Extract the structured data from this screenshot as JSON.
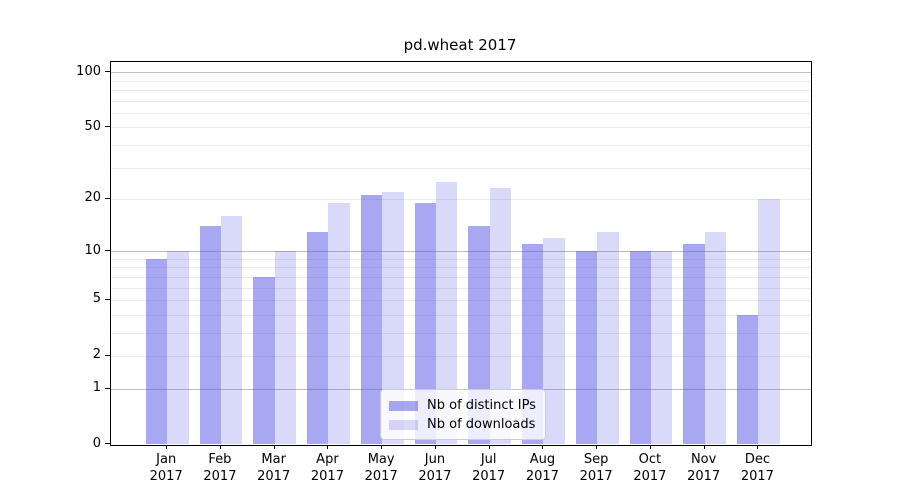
{
  "chart_data": {
    "type": "bar",
    "title": "pd.wheat 2017",
    "categories": [
      "Jan 2017",
      "Feb 2017",
      "Mar 2017",
      "Apr 2017",
      "May 2017",
      "Jun 2017",
      "Jul 2017",
      "Aug 2017",
      "Sep 2017",
      "Oct 2017",
      "Nov 2017",
      "Dec 2017"
    ],
    "series": [
      {
        "name": "Nb of distinct IPs",
        "color": "rgba(80,80,230,0.5)",
        "values": [
          9,
          14,
          7,
          13,
          21,
          19,
          14,
          11,
          10,
          10,
          11,
          4
        ]
      },
      {
        "name": "Nb of downloads",
        "color": "rgba(80,80,230,0.22)",
        "values": [
          10,
          16,
          10,
          19,
          22,
          25,
          23,
          12,
          13,
          10,
          13,
          20
        ]
      }
    ],
    "yscale": "log1p",
    "xlabel": "",
    "ylabel": "",
    "y_axis": {
      "tick_values": [
        100,
        50,
        20,
        10,
        5,
        2,
        1,
        0
      ],
      "tick_labels": [
        "100",
        "50",
        "20",
        "10",
        "5",
        "2",
        "1",
        "0"
      ],
      "major_gridlines": [
        1,
        10,
        100
      ],
      "minor_gridlines": [
        2,
        3,
        4,
        5,
        6,
        7,
        8,
        9,
        20,
        30,
        40,
        50,
        60,
        70,
        80,
        90
      ],
      "range": [
        0,
        114
      ]
    },
    "legend": {
      "position": "lower center"
    },
    "grid": true
  },
  "colors": {
    "ips_bar": "rgba(80,80,230,0.5)",
    "downloads_bar": "rgba(80,80,230,0.22)",
    "major_grid": "#bdbdbd",
    "minor_grid": "#ebebeb",
    "axis": "#000000",
    "legend_border": "#cccccc",
    "legend_bg": "rgba(255,255,255,0.8)"
  }
}
